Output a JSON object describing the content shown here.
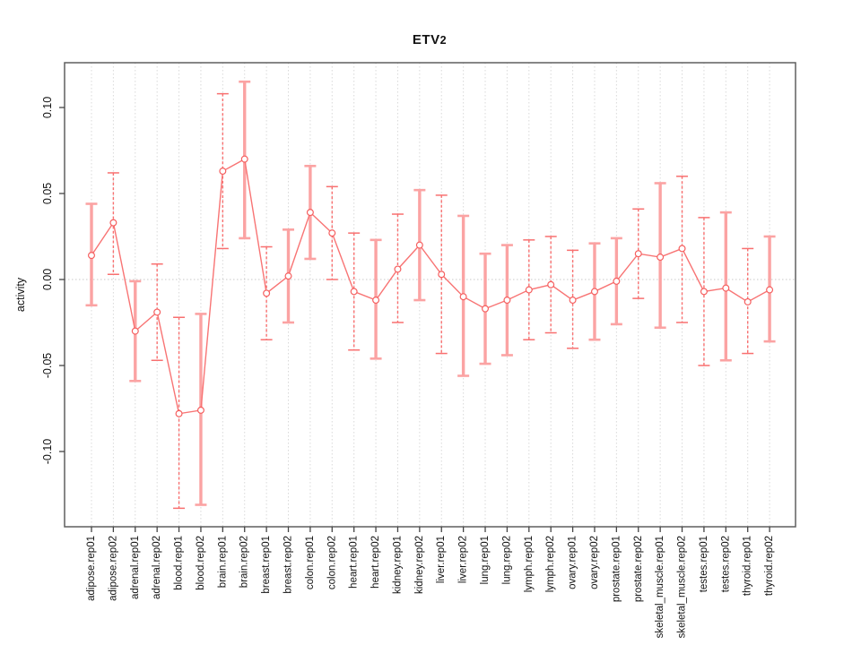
{
  "chart_data": {
    "type": "line",
    "title": "ETV2",
    "title_parts": {
      "main": "ETV",
      "sub": "2"
    },
    "ylabel": "activity",
    "categories": [
      "adipose.rep01",
      "adipose.rep02",
      "adrenal.rep01",
      "adrenal.rep02",
      "blood.rep01",
      "blood.rep02",
      "brain.rep01",
      "brain.rep02",
      "breast.rep01",
      "breast.rep02",
      "colon.rep01",
      "colon.rep02",
      "heart.rep01",
      "heart.rep02",
      "kidney.rep01",
      "kidney.rep02",
      "liver.rep01",
      "liver.rep02",
      "lung.rep01",
      "lung.rep02",
      "lymph.rep01",
      "lymph.rep02",
      "ovary.rep01",
      "ovary.rep02",
      "prostate.rep01",
      "prostate.rep02",
      "skeletal_muscle.rep01",
      "skeletal_muscle.rep02",
      "testes.rep01",
      "testes.rep02",
      "thyroid.rep01",
      "thyroid.rep02"
    ],
    "series": [
      {
        "name": "activity",
        "values": [
          0.014,
          0.033,
          -0.03,
          -0.019,
          -0.078,
          -0.076,
          0.063,
          0.07,
          -0.008,
          0.002,
          0.039,
          0.027,
          -0.007,
          -0.012,
          0.006,
          0.02,
          0.003,
          -0.01,
          -0.017,
          -0.012,
          -0.006,
          -0.003,
          -0.012,
          -0.007,
          -0.001,
          0.015,
          0.013,
          0.018,
          -0.007,
          -0.005,
          -0.013,
          -0.006
        ],
        "error_low": [
          -0.015,
          0.003,
          -0.059,
          -0.047,
          -0.133,
          -0.131,
          0.018,
          0.024,
          -0.035,
          -0.025,
          0.012,
          0.0,
          -0.041,
          -0.046,
          -0.025,
          -0.012,
          -0.043,
          -0.056,
          -0.049,
          -0.044,
          -0.035,
          -0.031,
          -0.04,
          -0.035,
          -0.026,
          -0.011,
          -0.028,
          -0.025,
          -0.05,
          -0.047,
          -0.043,
          -0.036
        ],
        "error_high": [
          0.044,
          0.062,
          -0.001,
          0.009,
          -0.022,
          -0.02,
          0.108,
          0.115,
          0.019,
          0.029,
          0.066,
          0.054,
          0.027,
          0.023,
          0.038,
          0.052,
          0.049,
          0.037,
          0.015,
          0.02,
          0.023,
          0.025,
          0.017,
          0.021,
          0.024,
          0.041,
          0.056,
          0.06,
          0.036,
          0.039,
          0.018,
          0.025
        ]
      }
    ],
    "bar_styles": [
      "solid",
      "dashed",
      "solid",
      "dashed",
      "dashed",
      "solid",
      "dashed",
      "solid",
      "dashed",
      "solid",
      "solid",
      "dashed",
      "dashed",
      "solid",
      "dashed",
      "solid",
      "dashed",
      "solid",
      "solid",
      "solid",
      "dashed",
      "dashed",
      "dashed",
      "solid",
      "solid",
      "dashed",
      "solid",
      "dashed",
      "dashed",
      "solid",
      "dashed",
      "solid"
    ],
    "yticks": [
      0.1,
      0.05,
      0.0,
      -0.05,
      -0.1
    ],
    "ytick_labels": [
      "0.10",
      "0.05",
      "0.00",
      "-0.05",
      "-0.10"
    ],
    "ylim": [
      -0.144,
      0.126
    ],
    "grid": "vertical dotted line per category, horizontal dotted line at y=0",
    "legend": "none",
    "colors": {
      "line": "#f87474",
      "marker_stroke": "#f55f5f",
      "marker_fill": "#ffffff",
      "errorbar_solid": "#fba3a3",
      "errorbar_dashed": "#f87070",
      "gridline": "#d9d9d9",
      "zero_line": "#c9c9c9",
      "frame": "#5f5f5f",
      "tick": "#444444",
      "text": "#111111",
      "background": "#ffffff"
    }
  }
}
